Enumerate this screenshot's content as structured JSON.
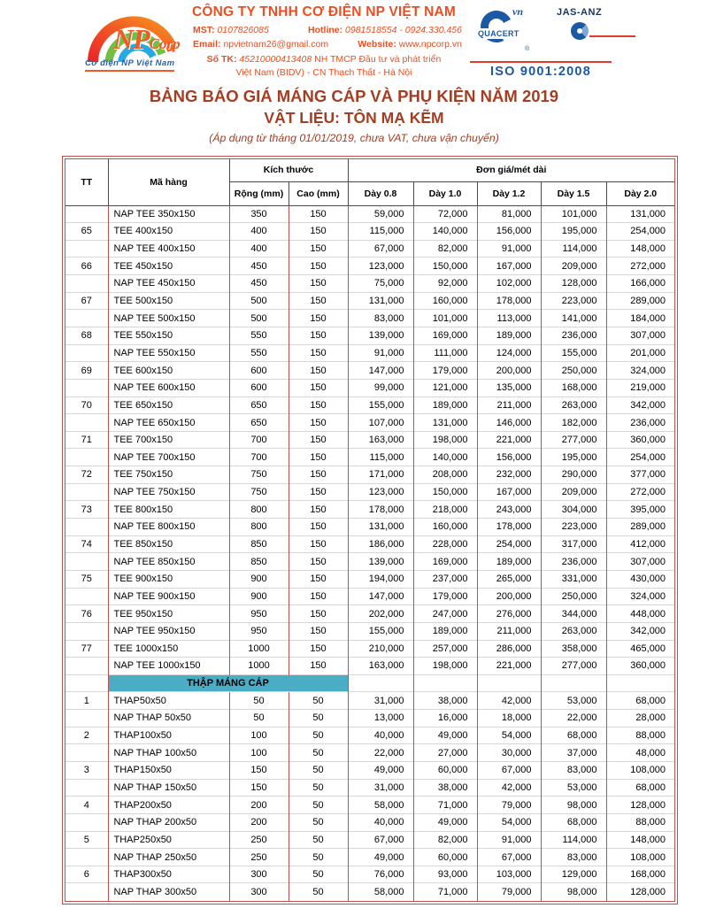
{
  "header": {
    "logo": {
      "np": "NP",
      "corp": "Corp",
      "tagline": "Cơ điện NP Việt Nam"
    },
    "company_name": "CÔNG TY TNHH CƠ ĐIỆN NP VIỆT NAM",
    "contact": {
      "mst_label": "MST:",
      "mst": "0107826085",
      "hotline_label": "Hotline:",
      "hotline": "0981518554 - 0924.330.456",
      "email_label": "Email:",
      "email": "npvietnam26@gmail.com",
      "website_label": "Website:",
      "website": "www.npcorp.vn",
      "bank_label": "Số TK:",
      "bank_number": "45210000413408",
      "bank_line1": "NH TMCP Đầu tư và phát triển",
      "bank_line2": "Việt Nam (BIDV) - CN Thạch Thất - Hà Nội"
    },
    "certs": {
      "quacert": "QUACERT",
      "quacert_vn": "vn",
      "registered": "®",
      "jas_anz": "JAS-ANZ",
      "iso": "ISO 9001:2008"
    }
  },
  "title": {
    "line1": "BẢNG BÁO GIÁ MÁNG CÁP VÀ PHỤ KIỆN NĂM 2019",
    "line2": "VẬT LIỆU: TÔN MẠ KẼM",
    "line3": "(Áp dụng từ tháng 01/01/2019, chưa VAT, chưa vận chuyển)"
  },
  "colors": {
    "accent_orange": "#f15a24",
    "title_red": "#a43e23",
    "table_border_red": "#c0504d",
    "section_teal": "#4bacc6",
    "cert_blue": "#1c59a4"
  },
  "table": {
    "columns": {
      "tt": "TT",
      "code": "Mã hàng",
      "size_group": "Kích thước",
      "width": "Rộng (mm)",
      "height": "Cao (mm)",
      "price_group": "Đơn giá/mét dài",
      "thickness": [
        "Dày 0.8",
        "Dày 1.0",
        "Dày 1.2",
        "Dày 1.5",
        "Dày 2.0"
      ]
    },
    "rows": [
      {
        "tt": "",
        "code": "NAP TEE 350x150",
        "w": "350",
        "h": "150",
        "prices": [
          "59,000",
          "72,000",
          "81,000",
          "101,000",
          "131,000"
        ]
      },
      {
        "tt": "65",
        "code": "TEE 400x150",
        "w": "400",
        "h": "150",
        "prices": [
          "115,000",
          "140,000",
          "156,000",
          "195,000",
          "254,000"
        ]
      },
      {
        "tt": "",
        "code": "NAP TEE 400x150",
        "w": "400",
        "h": "150",
        "prices": [
          "67,000",
          "82,000",
          "91,000",
          "114,000",
          "148,000"
        ]
      },
      {
        "tt": "66",
        "code": "TEE 450x150",
        "w": "450",
        "h": "150",
        "prices": [
          "123,000",
          "150,000",
          "167,000",
          "209,000",
          "272,000"
        ]
      },
      {
        "tt": "",
        "code": "NAP TEE 450x150",
        "w": "450",
        "h": "150",
        "prices": [
          "75,000",
          "92,000",
          "102,000",
          "128,000",
          "166,000"
        ]
      },
      {
        "tt": "67",
        "code": "TEE 500x150",
        "w": "500",
        "h": "150",
        "prices": [
          "131,000",
          "160,000",
          "178,000",
          "223,000",
          "289,000"
        ]
      },
      {
        "tt": "",
        "code": "NAP TEE 500x150",
        "w": "500",
        "h": "150",
        "prices": [
          "83,000",
          "101,000",
          "113,000",
          "141,000",
          "184,000"
        ]
      },
      {
        "tt": "68",
        "code": "TEE 550x150",
        "w": "550",
        "h": "150",
        "prices": [
          "139,000",
          "169,000",
          "189,000",
          "236,000",
          "307,000"
        ]
      },
      {
        "tt": "",
        "code": "NAP TEE 550x150",
        "w": "550",
        "h": "150",
        "prices": [
          "91,000",
          "111,000",
          "124,000",
          "155,000",
          "201,000"
        ]
      },
      {
        "tt": "69",
        "code": "TEE 600x150",
        "w": "600",
        "h": "150",
        "prices": [
          "147,000",
          "179,000",
          "200,000",
          "250,000",
          "324,000"
        ]
      },
      {
        "tt": "",
        "code": "NAP TEE 600x150",
        "w": "600",
        "h": "150",
        "prices": [
          "99,000",
          "121,000",
          "135,000",
          "168,000",
          "219,000"
        ]
      },
      {
        "tt": "70",
        "code": "TEE 650x150",
        "w": "650",
        "h": "150",
        "prices": [
          "155,000",
          "189,000",
          "211,000",
          "263,000",
          "342,000"
        ]
      },
      {
        "tt": "",
        "code": "NAP TEE 650x150",
        "w": "650",
        "h": "150",
        "prices": [
          "107,000",
          "131,000",
          "146,000",
          "182,000",
          "236,000"
        ]
      },
      {
        "tt": "71",
        "code": "TEE 700x150",
        "w": "700",
        "h": "150",
        "prices": [
          "163,000",
          "198,000",
          "221,000",
          "277,000",
          "360,000"
        ]
      },
      {
        "tt": "",
        "code": "NAP TEE 700x150",
        "w": "700",
        "h": "150",
        "prices": [
          "115,000",
          "140,000",
          "156,000",
          "195,000",
          "254,000"
        ]
      },
      {
        "tt": "72",
        "code": "TEE 750x150",
        "w": "750",
        "h": "150",
        "prices": [
          "171,000",
          "208,000",
          "232,000",
          "290,000",
          "377,000"
        ]
      },
      {
        "tt": "",
        "code": "NAP TEE 750x150",
        "w": "750",
        "h": "150",
        "prices": [
          "123,000",
          "150,000",
          "167,000",
          "209,000",
          "272,000"
        ]
      },
      {
        "tt": "73",
        "code": "TEE 800x150",
        "w": "800",
        "h": "150",
        "prices": [
          "178,000",
          "218,000",
          "243,000",
          "304,000",
          "395,000"
        ]
      },
      {
        "tt": "",
        "code": "NAP TEE 800x150",
        "w": "800",
        "h": "150",
        "prices": [
          "131,000",
          "160,000",
          "178,000",
          "223,000",
          "289,000"
        ]
      },
      {
        "tt": "74",
        "code": "TEE 850x150",
        "w": "850",
        "h": "150",
        "prices": [
          "186,000",
          "228,000",
          "254,000",
          "317,000",
          "412,000"
        ]
      },
      {
        "tt": "",
        "code": "NAP TEE 850x150",
        "w": "850",
        "h": "150",
        "prices": [
          "139,000",
          "169,000",
          "189,000",
          "236,000",
          "307,000"
        ]
      },
      {
        "tt": "75",
        "code": "TEE 900x150",
        "w": "900",
        "h": "150",
        "prices": [
          "194,000",
          "237,000",
          "265,000",
          "331,000",
          "430,000"
        ]
      },
      {
        "tt": "",
        "code": "NAP TEE 900x150",
        "w": "900",
        "h": "150",
        "prices": [
          "147,000",
          "179,000",
          "200,000",
          "250,000",
          "324,000"
        ]
      },
      {
        "tt": "76",
        "code": "TEE 950x150",
        "w": "950",
        "h": "150",
        "prices": [
          "202,000",
          "247,000",
          "276,000",
          "344,000",
          "448,000"
        ]
      },
      {
        "tt": "",
        "code": "NAP TEE 950x150",
        "w": "950",
        "h": "150",
        "prices": [
          "155,000",
          "189,000",
          "211,000",
          "263,000",
          "342,000"
        ]
      },
      {
        "tt": "77",
        "code": "TEE 1000x150",
        "w": "1000",
        "h": "150",
        "prices": [
          "210,000",
          "257,000",
          "286,000",
          "358,000",
          "465,000"
        ]
      },
      {
        "tt": "",
        "code": "NAP TEE 1000x150",
        "w": "1000",
        "h": "150",
        "prices": [
          "163,000",
          "198,000",
          "221,000",
          "277,000",
          "360,000"
        ]
      },
      {
        "section": "THẬP MÁNG CÁP"
      },
      {
        "tt": "1",
        "code": "THAP50x50",
        "w": "50",
        "h": "50",
        "prices": [
          "31,000",
          "38,000",
          "42,000",
          "53,000",
          "68,000"
        ]
      },
      {
        "tt": "",
        "code": "NAP THAP 50x50",
        "w": "50",
        "h": "50",
        "prices": [
          "13,000",
          "16,000",
          "18,000",
          "22,000",
          "28,000"
        ]
      },
      {
        "tt": "2",
        "code": "THAP100x50",
        "w": "100",
        "h": "50",
        "prices": [
          "40,000",
          "49,000",
          "54,000",
          "68,000",
          "88,000"
        ]
      },
      {
        "tt": "",
        "code": "NAP THAP 100x50",
        "w": "100",
        "h": "50",
        "prices": [
          "22,000",
          "27,000",
          "30,000",
          "37,000",
          "48,000"
        ]
      },
      {
        "tt": "3",
        "code": "THAP150x50",
        "w": "150",
        "h": "50",
        "prices": [
          "49,000",
          "60,000",
          "67,000",
          "83,000",
          "108,000"
        ]
      },
      {
        "tt": "",
        "code": "NAP THAP 150x50",
        "w": "150",
        "h": "50",
        "prices": [
          "31,000",
          "38,000",
          "42,000",
          "53,000",
          "68,000"
        ]
      },
      {
        "tt": "4",
        "code": "THAP200x50",
        "w": "200",
        "h": "50",
        "prices": [
          "58,000",
          "71,000",
          "79,000",
          "98,000",
          "128,000"
        ]
      },
      {
        "tt": "",
        "code": "NAP THAP 200x50",
        "w": "200",
        "h": "50",
        "prices": [
          "40,000",
          "49,000",
          "54,000",
          "68,000",
          "88,000"
        ]
      },
      {
        "tt": "5",
        "code": "THAP250x50",
        "w": "250",
        "h": "50",
        "prices": [
          "67,000",
          "82,000",
          "91,000",
          "114,000",
          "148,000"
        ]
      },
      {
        "tt": "",
        "code": "NAP THAP 250x50",
        "w": "250",
        "h": "50",
        "prices": [
          "49,000",
          "60,000",
          "67,000",
          "83,000",
          "108,000"
        ]
      },
      {
        "tt": "6",
        "code": "THAP300x50",
        "w": "300",
        "h": "50",
        "prices": [
          "76,000",
          "93,000",
          "103,000",
          "129,000",
          "168,000"
        ]
      },
      {
        "tt": "",
        "code": "NAP THAP 300x50",
        "w": "300",
        "h": "50",
        "prices": [
          "58,000",
          "71,000",
          "79,000",
          "98,000",
          "128,000"
        ]
      }
    ]
  }
}
